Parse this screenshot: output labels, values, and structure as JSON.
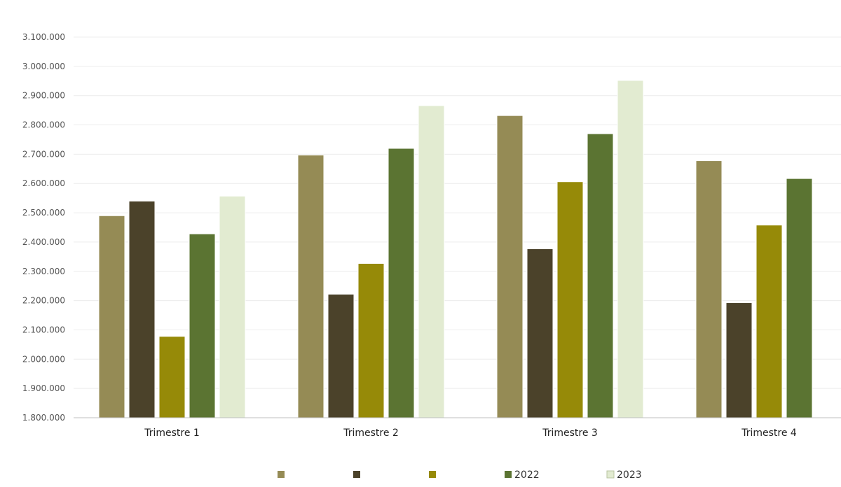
{
  "chart_data": {
    "type": "bar",
    "categories": [
      "Trimestre 1",
      "Trimestre 2",
      "Trimestre 3",
      "Trimestre 4"
    ],
    "series": [
      {
        "name": "",
        "color": "#958b55",
        "values": [
          2490000,
          2697000,
          2832000,
          2678000
        ]
      },
      {
        "name": "",
        "color": "#4b422a",
        "values": [
          2540000,
          2222000,
          2377000,
          2193000
        ]
      },
      {
        "name": "",
        "color": "#968a08",
        "values": [
          2078000,
          2327000,
          2606000,
          2458000
        ]
      },
      {
        "name": "2022",
        "color": "#5b7432",
        "values": [
          2428000,
          2720000,
          2770000,
          2617000
        ]
      },
      {
        "name": "2023",
        "color": "#e2ebd1",
        "values": [
          2557000,
          2866000,
          2952000,
          null
        ]
      }
    ],
    "ylim": [
      1800000,
      3100000
    ],
    "yticks": [
      "1.800.000",
      "1.900.000",
      "2.000.000",
      "2.100.000",
      "2.200.000",
      "2.300.000",
      "2.400.000",
      "2.500.000",
      "2.600.000",
      "2.700.000",
      "2.800.000",
      "2.900.000",
      "3.000.000",
      "3.100.000"
    ],
    "ytick_values": [
      1800000,
      1900000,
      2000000,
      2100000,
      2200000,
      2300000,
      2400000,
      2500000,
      2600000,
      2700000,
      2800000,
      2900000,
      3000000,
      3100000
    ],
    "grid": true,
    "legend": "bottom",
    "title": "",
    "xlabel": "",
    "ylabel": ""
  }
}
